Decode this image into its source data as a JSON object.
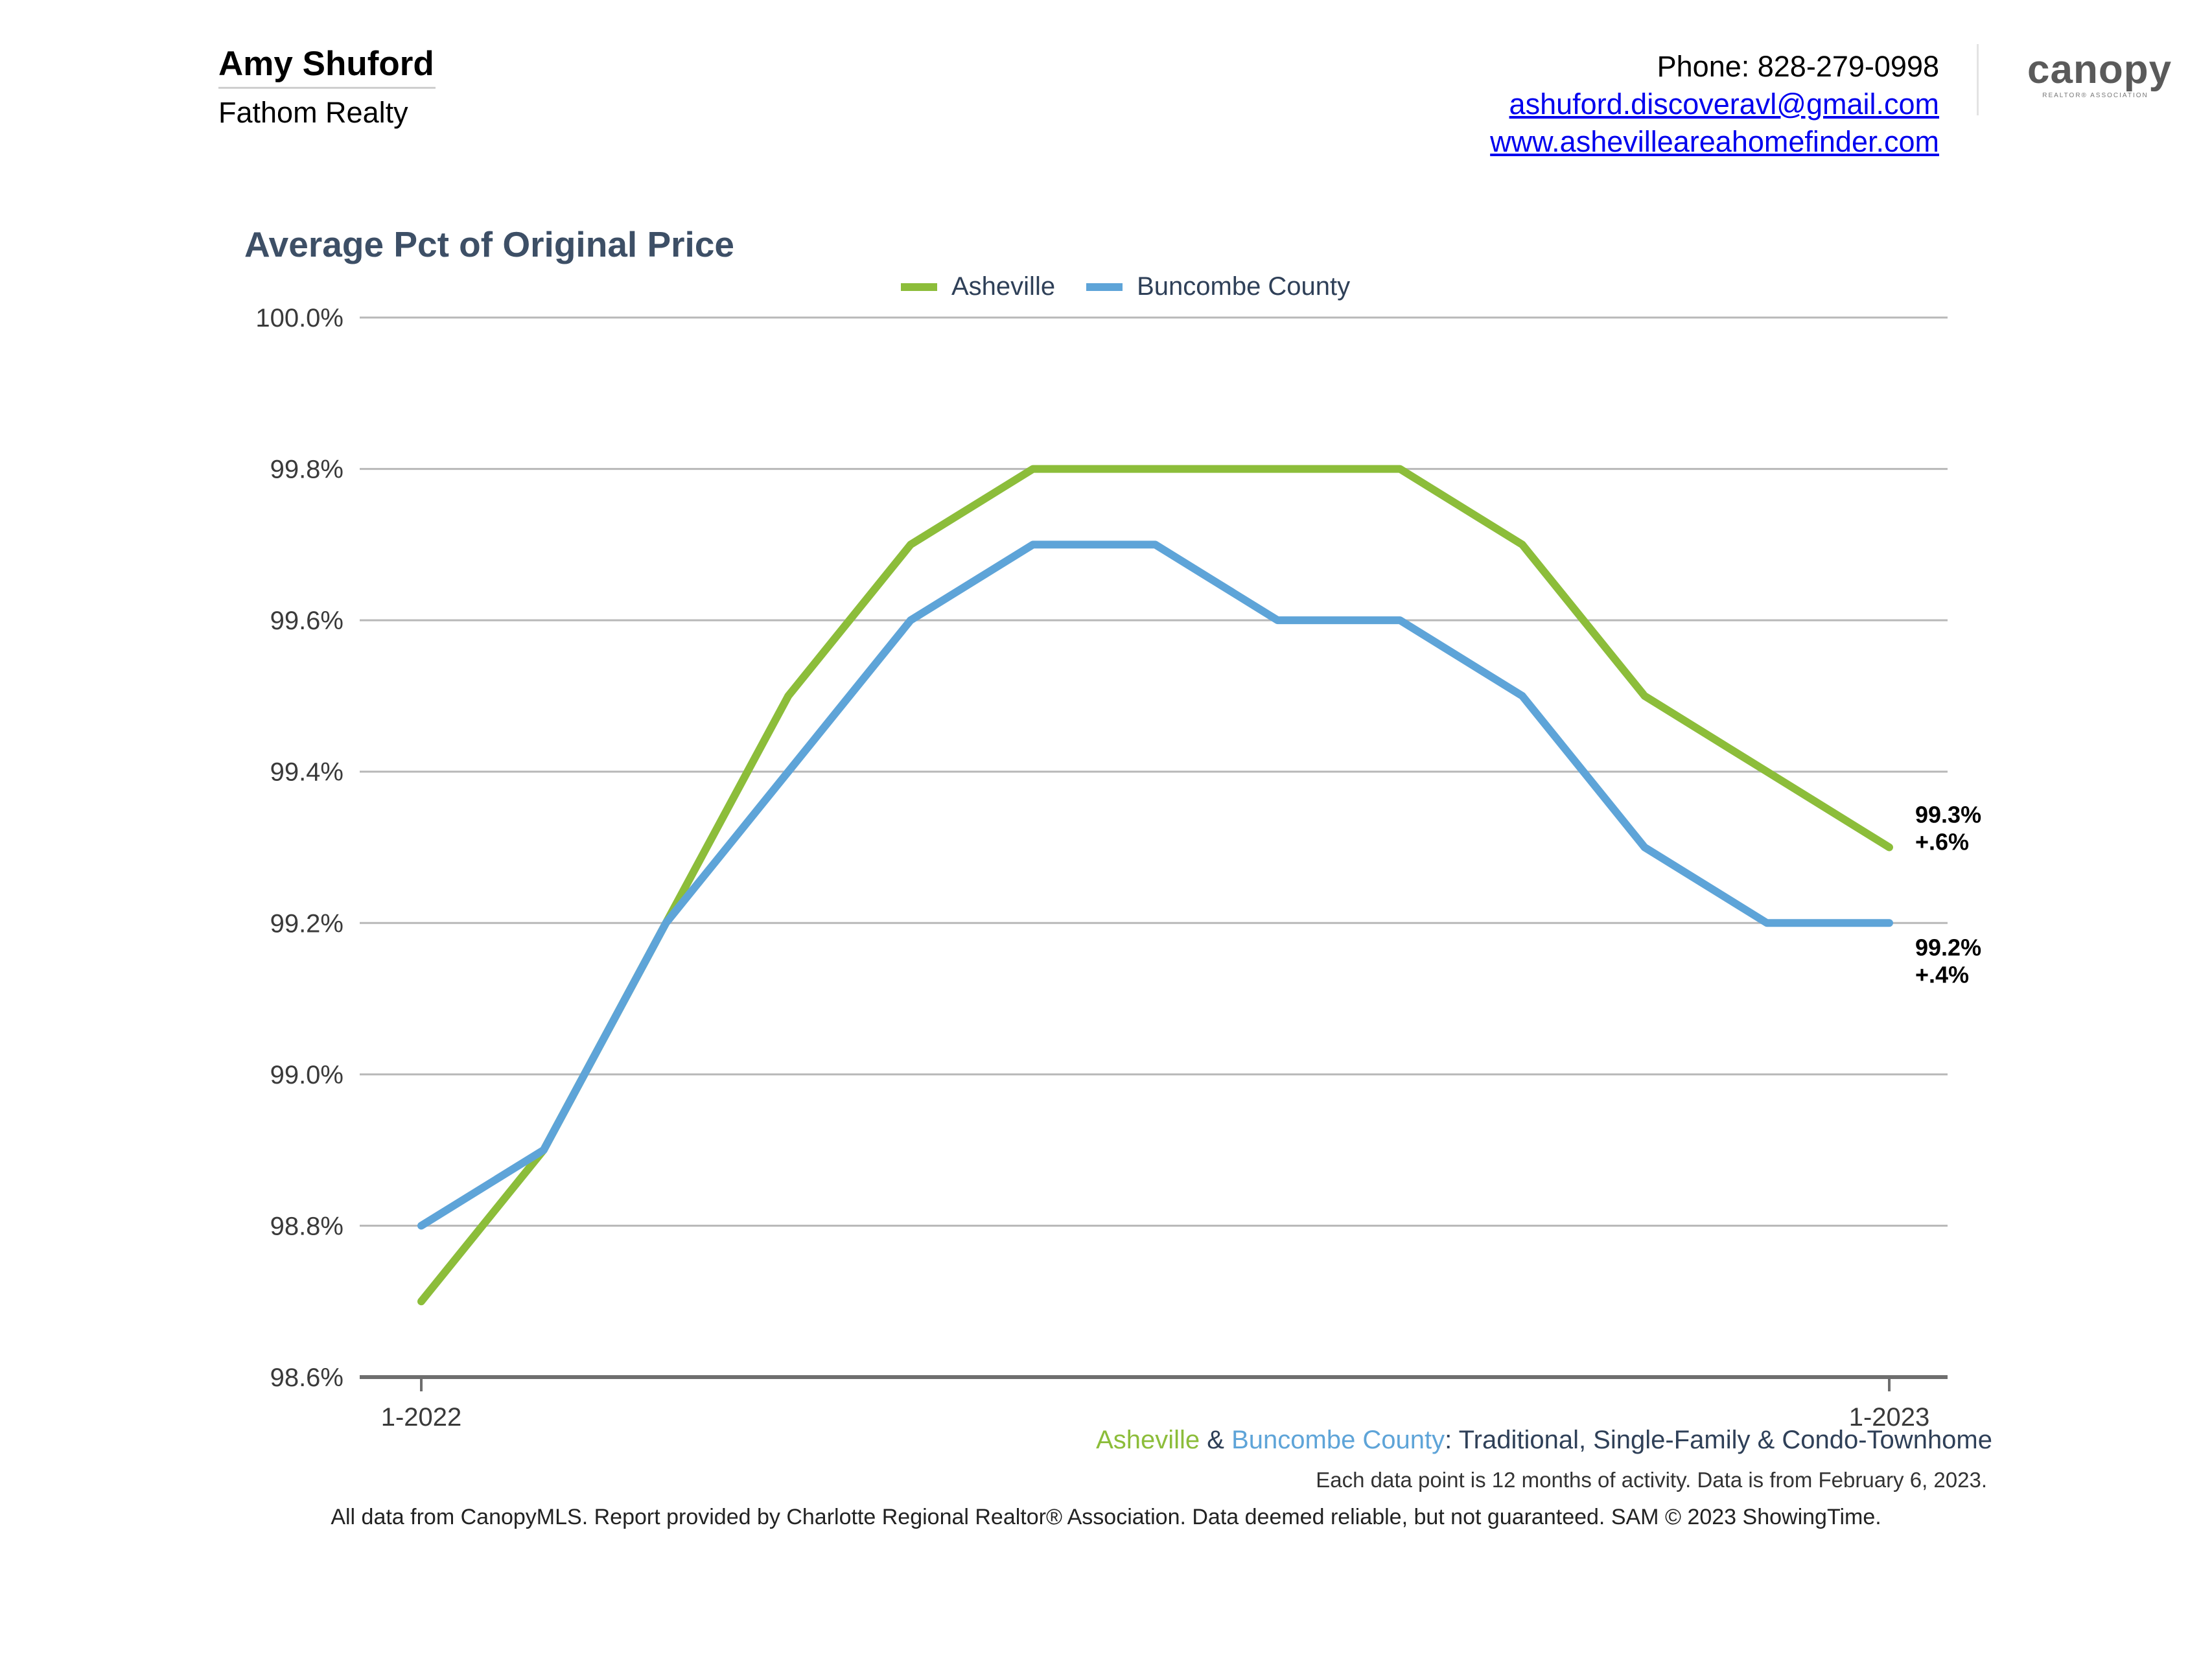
{
  "header": {
    "agent_name": "Amy Shuford",
    "company": "Fathom Realty",
    "phone": "Phone: 828-279-0998",
    "email": "ashuford.discoveravl@gmail.com",
    "website": "www.ashevilleareahomefinder.com",
    "logo_text": "canopy",
    "logo_sub": "REALTOR® ASSOCIATION"
  },
  "chart_data": {
    "type": "line",
    "title": "Average Pct of Original Price",
    "ylim": [
      98.6,
      100.0
    ],
    "y_ticks": [
      "100.0%",
      "99.8%",
      "99.6%",
      "99.4%",
      "99.2%",
      "99.0%",
      "98.8%",
      "98.6%"
    ],
    "y_tick_values": [
      100.0,
      99.8,
      99.6,
      99.4,
      99.2,
      99.0,
      98.8,
      98.6
    ],
    "x": [
      "1-2022",
      "2-2022",
      "3-2022",
      "4-2022",
      "5-2022",
      "6-2022",
      "7-2022",
      "8-2022",
      "9-2022",
      "10-2022",
      "11-2022",
      "12-2022",
      "1-2023"
    ],
    "x_tick_labels": [
      "1-2022",
      "1-2023"
    ],
    "grid": true,
    "legend": "top-center",
    "series": [
      {
        "name": "Asheville",
        "color": "#8cbd3a",
        "values": [
          98.7,
          98.9,
          99.2,
          99.5,
          99.7,
          99.8,
          99.8,
          99.8,
          99.8,
          99.7,
          99.5,
          99.4,
          99.3
        ],
        "end_label_value": "99.3%",
        "end_label_change": "+.6%"
      },
      {
        "name": "Buncombe County",
        "color": "#5ea4d8",
        "values": [
          98.8,
          98.9,
          99.2,
          99.4,
          99.6,
          99.7,
          99.7,
          99.6,
          99.6,
          99.5,
          99.3,
          99.2,
          99.2
        ],
        "end_label_value": "99.2%",
        "end_label_change": "+.4%"
      }
    ]
  },
  "subtitle": {
    "part1": "Asheville",
    "amp": " & ",
    "part2": "Buncombe County",
    "rest": ": Traditional, Single-Family & Condo-Townhome"
  },
  "note": "Each data point is 12 months of activity. Data is from February 6, 2023.",
  "footer": "All data from CanopyMLS. Report provided by Charlotte Regional Realtor® Association. Data deemed reliable, but not guaranteed. SAM © 2023 ShowingTime."
}
